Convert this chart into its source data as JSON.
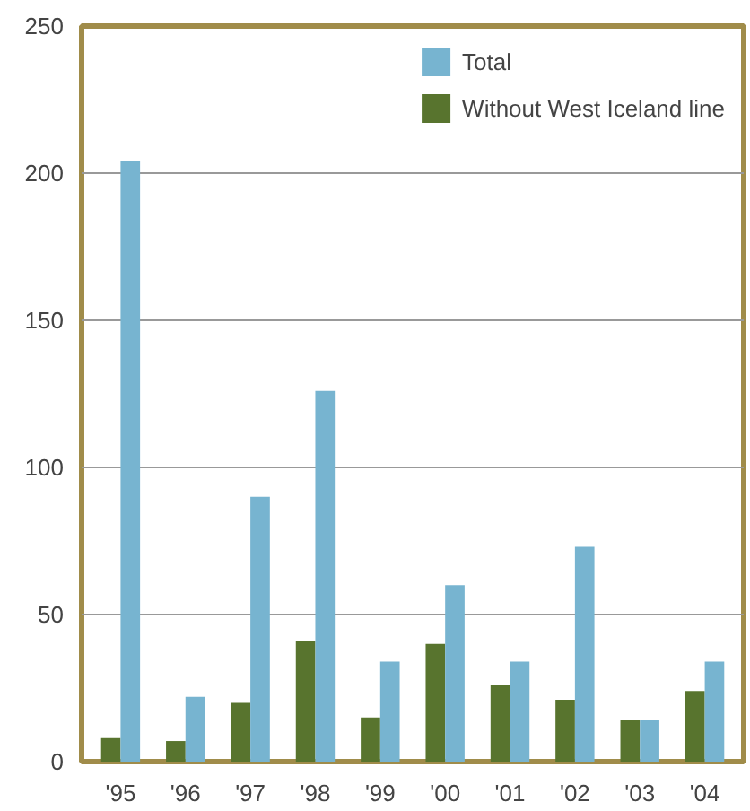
{
  "chart_data": {
    "type": "bar",
    "categories": [
      "'95",
      "'96",
      "'97",
      "'98",
      "'99",
      "'00",
      "'01",
      "'02",
      "'03",
      "'04"
    ],
    "series": [
      {
        "name": "Without West Iceland line",
        "color": "#58742e",
        "values": [
          8,
          7,
          20,
          41,
          15,
          40,
          26,
          21,
          14,
          24
        ]
      },
      {
        "name": "Total",
        "color": "#77b4d0",
        "values": [
          204,
          22,
          90,
          126,
          34,
          60,
          34,
          73,
          14,
          34
        ]
      }
    ],
    "ylim": [
      0,
      250
    ],
    "yticks": [
      0,
      50,
      100,
      150,
      200,
      250
    ],
    "grid": "y",
    "legend": "top right"
  }
}
